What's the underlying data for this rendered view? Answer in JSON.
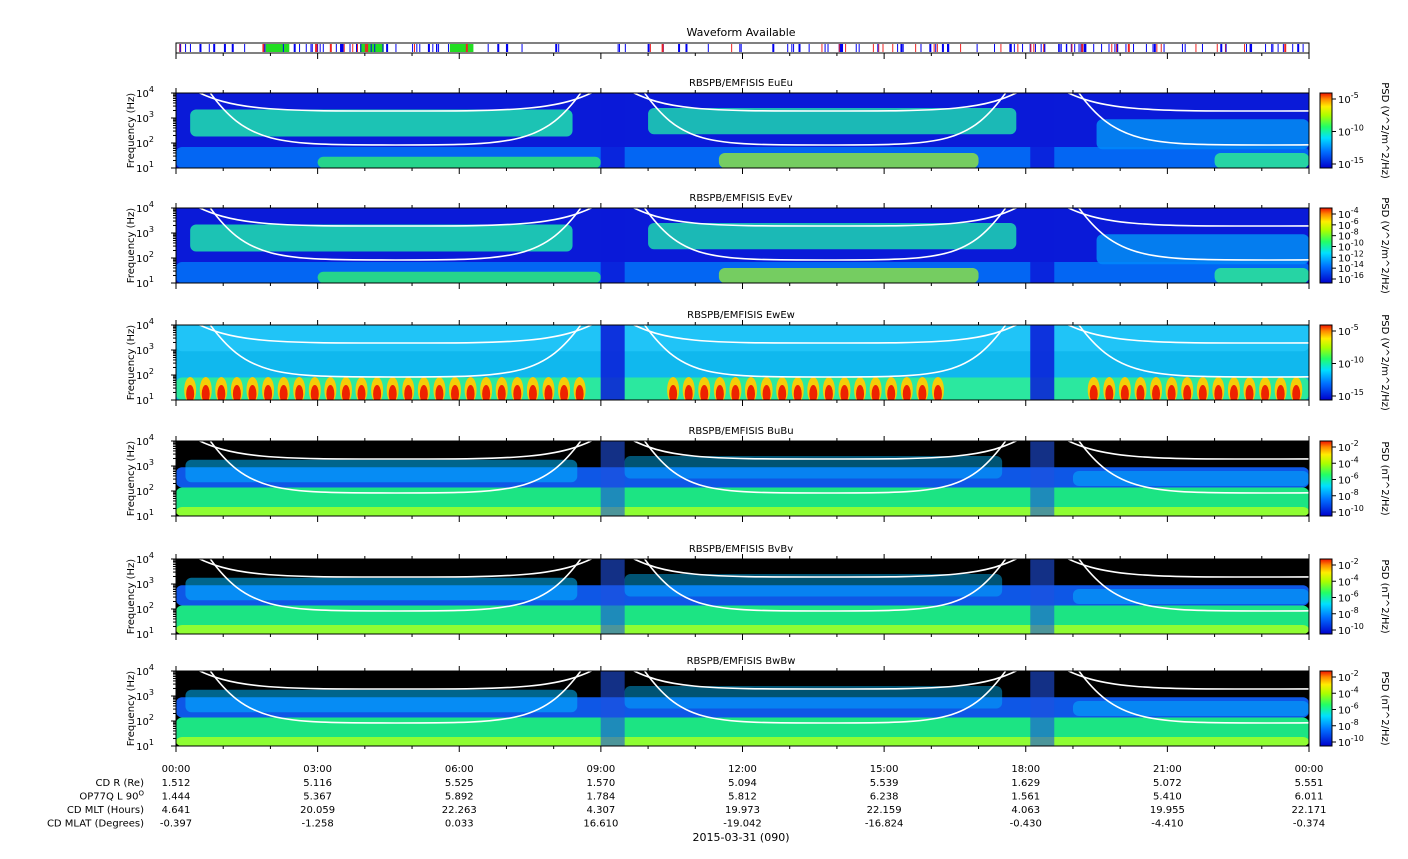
{
  "waveform": {
    "title": "Waveform Available",
    "colors": {
      "green": "#22dd22",
      "blue": "#0000ee",
      "red": "#ee2222"
    }
  },
  "chart_data": [
    {
      "type": "heatmap",
      "title": "RBSPB/EMFISIS  EuEu",
      "ylabel": "Frequency (Hz)",
      "colorbar_label": "PSD (V^2/m^2/Hz)",
      "background": "dark-blue",
      "ylim": [
        10,
        10000
      ],
      "yscale": "log",
      "cbar_ticks": [
        [
          "10",
          "-5"
        ],
        [
          "10",
          "-10"
        ],
        [
          "10",
          "-15"
        ]
      ]
    },
    {
      "type": "heatmap",
      "title": "RBSPB/EMFISIS  EvEv",
      "ylabel": "Frequency (Hz)",
      "colorbar_label": "PSD (V^2/m^2/Hz)",
      "background": "dark-blue",
      "ylim": [
        10,
        10000
      ],
      "yscale": "log",
      "cbar_ticks": [
        [
          "10",
          "-4"
        ],
        [
          "10",
          "-6"
        ],
        [
          "10",
          "-8"
        ],
        [
          "10",
          "-10"
        ],
        [
          "10",
          "-12"
        ],
        [
          "10",
          "-14"
        ],
        [
          "10",
          "-16"
        ]
      ]
    },
    {
      "type": "heatmap",
      "title": "RBSPB/EMFISIS  EwEw",
      "ylabel": "Frequency (Hz)",
      "colorbar_label": "PSD (V^2/m^2/Hz)",
      "background": "light-blue",
      "ylim": [
        10,
        10000
      ],
      "yscale": "log",
      "cbar_ticks": [
        [
          "10",
          "-5"
        ],
        [
          "10",
          "-10"
        ],
        [
          "10",
          "-15"
        ]
      ]
    },
    {
      "type": "heatmap",
      "title": "RBSPB/EMFISIS  BuBu",
      "ylabel": "Frequency (Hz)",
      "colorbar_label": "PSD (nT^2/Hz)",
      "background": "black",
      "ylim": [
        10,
        10000
      ],
      "yscale": "log",
      "cbar_ticks": [
        [
          "10",
          "-2"
        ],
        [
          "10",
          "-4"
        ],
        [
          "10",
          "-6"
        ],
        [
          "10",
          "-8"
        ],
        [
          "10",
          "-10"
        ]
      ]
    },
    {
      "type": "heatmap",
      "title": "RBSPB/EMFISIS  BvBv",
      "ylabel": "Frequency (Hz)",
      "colorbar_label": "PSD (nT^2/Hz)",
      "background": "black",
      "ylim": [
        10,
        10000
      ],
      "yscale": "log",
      "cbar_ticks": [
        [
          "10",
          "-2"
        ],
        [
          "10",
          "-4"
        ],
        [
          "10",
          "-6"
        ],
        [
          "10",
          "-8"
        ],
        [
          "10",
          "-10"
        ]
      ]
    },
    {
      "type": "heatmap",
      "title": "RBSPB/EMFISIS  BwBw",
      "ylabel": "Frequency (Hz)",
      "colorbar_label": "PSD (nT^2/Hz)",
      "background": "black",
      "ylim": [
        10,
        10000
      ],
      "yscale": "log",
      "cbar_ticks": [
        [
          "10",
          "-2"
        ],
        [
          "10",
          "-4"
        ],
        [
          "10",
          "-6"
        ],
        [
          "10",
          "-8"
        ],
        [
          "10",
          "-10"
        ]
      ]
    }
  ],
  "yticks": [
    [
      "10",
      "1"
    ],
    [
      "10",
      "2"
    ],
    [
      "10",
      "3"
    ],
    [
      "10",
      "4"
    ]
  ],
  "xaxis": {
    "hours": [
      0,
      3,
      6,
      9,
      12,
      15,
      18,
      21,
      24
    ],
    "ticks": [
      "00:00",
      "03:00",
      "06:00",
      "09:00",
      "12:00",
      "15:00",
      "18:00",
      "21:00",
      "00:00"
    ],
    "date_label": "2015-03-31 (090)"
  },
  "ephemeris": [
    {
      "label": "CD R (Re)",
      "values": [
        "1.512",
        "5.116",
        "5.525",
        "1.570",
        "5.094",
        "5.539",
        "1.629",
        "5.072",
        "5.551"
      ]
    },
    {
      "label": "OP77Q L 90",
      "sup": "O",
      "values": [
        "1.444",
        "5.367",
        "5.892",
        "1.784",
        "5.812",
        "6.238",
        "1.561",
        "5.410",
        "6.011"
      ]
    },
    {
      "label": "CD MLT (Hours)",
      "values": [
        "4.641",
        "20.059",
        "22.263",
        "4.307",
        "19.973",
        "22.159",
        "4.063",
        "19.955",
        "22.171"
      ]
    },
    {
      "label": "CD MLAT (Degrees)",
      "values": [
        "-0.397",
        "-1.258",
        "0.033",
        "16.610",
        "-19.042",
        "-16.824",
        "-0.430",
        "-4.410",
        "-0.374"
      ]
    }
  ]
}
